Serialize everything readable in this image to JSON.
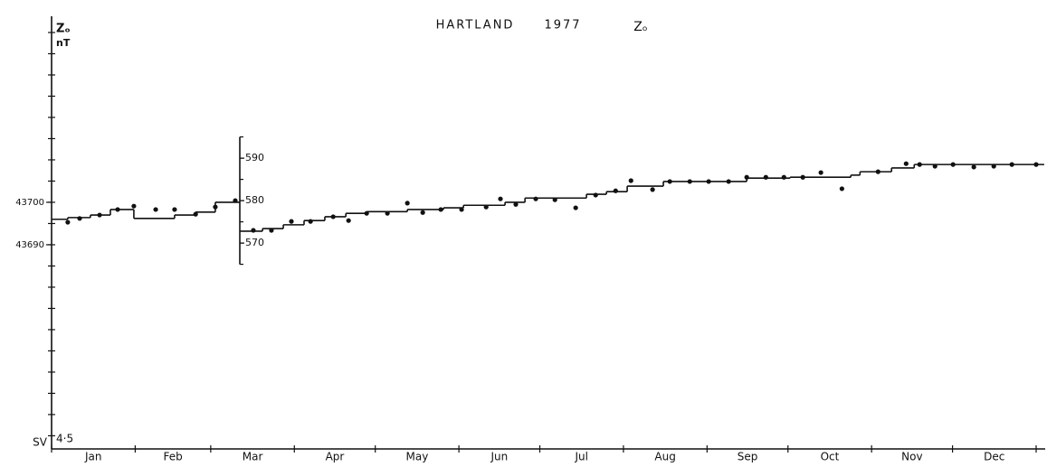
{
  "chart_data": {
    "type": "scatter",
    "title_parts": [
      "HARTLAND",
      "1977",
      "Zₒ"
    ],
    "ylabel": [
      "Zₒ",
      "nT"
    ],
    "footer_labels": [
      "SV",
      "4·5"
    ],
    "categories": [
      "Jan",
      "Feb",
      "Mar",
      "Apr",
      "May",
      "Jun",
      "Jul",
      "Aug",
      "Sep",
      "Oct",
      "Nov",
      "Dec"
    ],
    "xlim": [
      0,
      365
    ],
    "xticks": [
      0,
      31,
      59,
      90,
      120,
      151,
      181,
      212,
      243,
      273,
      304,
      334,
      365
    ],
    "ylim": [
      43641.9,
      43743.4
    ],
    "yticks": [
      43690,
      43700
    ],
    "yminor": [
      43645,
      43650,
      43655,
      43660,
      43665,
      43670,
      43675,
      43680,
      43685,
      43690,
      43695,
      43700,
      43705,
      43710,
      43715,
      43720,
      43725,
      43730,
      43735,
      43740
    ],
    "y2lim": [
      521.5,
      623
    ],
    "y2ticks": [
      570,
      580,
      590
    ],
    "y2minor": [
      565,
      570,
      575,
      580,
      585,
      590,
      595
    ],
    "color": "#111111",
    "series": [
      {
        "type": "scatter",
        "axis": "y",
        "color": "#111111",
        "x": [
          6,
          10.4,
          17.8,
          24.5,
          30.5,
          38.6,
          45.6,
          53.4,
          60.7,
          68.1
        ],
        "values": [
          43695.3,
          43696.2,
          43697,
          43698.3,
          43699.1,
          43698.3,
          43698.3,
          43697.2,
          43698.9,
          43700.4
        ]
      },
      {
        "type": "step",
        "axis": "y",
        "color": "#111111",
        "x": [
          0,
          6,
          14.4,
          21.8,
          30.5,
          45.6,
          53.4,
          60.7,
          69.8
        ],
        "values": [
          43696,
          43696.4,
          43697,
          43698.3,
          43696.2,
          43697,
          43697.7,
          43700,
          43700
        ]
      },
      {
        "type": "scatter",
        "axis": "y2",
        "color": "#111111",
        "x": [
          74.8,
          81.5,
          88.9,
          96,
          104.4,
          110.1,
          116.8,
          124.5,
          131.9,
          137.6,
          144.3,
          152,
          161.1,
          166.4,
          172.1,
          179.5,
          186.6,
          194.3,
          201.7,
          209.1,
          214.8,
          222.8,
          229.2,
          236.6,
          243.6,
          251,
          257.7,
          264.8,
          271.5,
          278.5,
          285.2,
          293,
          306.4,
          316.8,
          321.8,
          327.5,
          334.2,
          341.9,
          349.3,
          356,
          365
        ],
        "values": [
          573,
          573,
          575.1,
          575.1,
          576.2,
          575.3,
          577,
          577,
          579.4,
          577.2,
          577.9,
          577.9,
          578.5,
          580.4,
          579.1,
          580.4,
          580.2,
          578.3,
          581.3,
          582.3,
          584.7,
          582.6,
          584.5,
          584.5,
          584.5,
          584.5,
          585.5,
          585.5,
          585.5,
          585.5,
          586.6,
          582.8,
          586.8,
          588.7,
          588.5,
          588.1,
          588.5,
          587.9,
          588.1,
          588.5,
          588.5
        ]
      },
      {
        "type": "step",
        "axis": "y2",
        "color": "#111111",
        "x": [
          69.8,
          78.2,
          85.9,
          93.6,
          101.3,
          109.1,
          116.8,
          131.9,
          145.3,
          152.7,
          168.1,
          175.5,
          198.3,
          205.7,
          213.4,
          226.8,
          257.7,
          273.8,
          296.3,
          299.7,
          311.4,
          319.8,
          368
        ],
        "values": [
          572.8,
          573.4,
          574.3,
          575.3,
          576.2,
          577,
          577.4,
          577.9,
          578.3,
          578.9,
          579.6,
          580.6,
          581.5,
          582.1,
          583.4,
          584.5,
          585.3,
          585.5,
          586,
          586.8,
          587.7,
          588.5,
          588.5
        ]
      }
    ]
  }
}
